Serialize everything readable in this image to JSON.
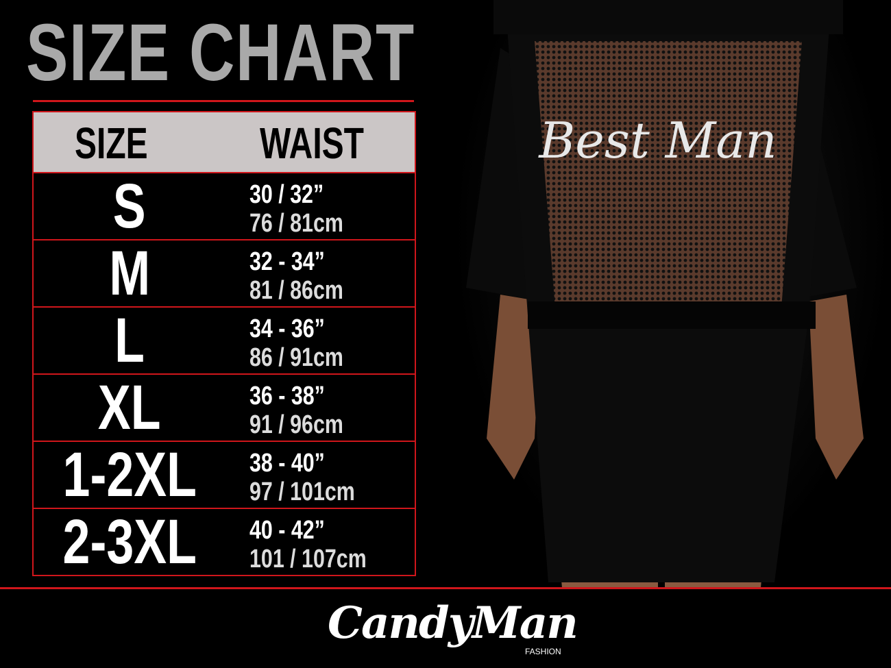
{
  "title": "SIZE CHART",
  "table": {
    "headers": {
      "size": "SIZE",
      "waist": "WAIST"
    },
    "rows": [
      {
        "size": "S",
        "inches": "30 / 32”",
        "cm": "76 / 81cm"
      },
      {
        "size": "M",
        "inches": "32 - 34”",
        "cm": "81 / 86cm"
      },
      {
        "size": "L",
        "inches": "34 - 36”",
        "cm": "86 / 91cm"
      },
      {
        "size": "XL",
        "inches": "36 - 38”",
        "cm": "91 / 96cm"
      },
      {
        "size": "1-2XL",
        "inches": "38 - 40”",
        "cm": "97 / 101cm"
      },
      {
        "size": "2-3XL",
        "inches": "40 - 42”",
        "cm": "101 / 107cm"
      }
    ]
  },
  "product": {
    "garment_print": "Best Man"
  },
  "brand": {
    "logo": "CandyMan",
    "logo_sub": "FASHION"
  },
  "colors": {
    "accent": "#d0161b",
    "header_bg": "#cbc6c6",
    "title": "#a9a9a9"
  }
}
